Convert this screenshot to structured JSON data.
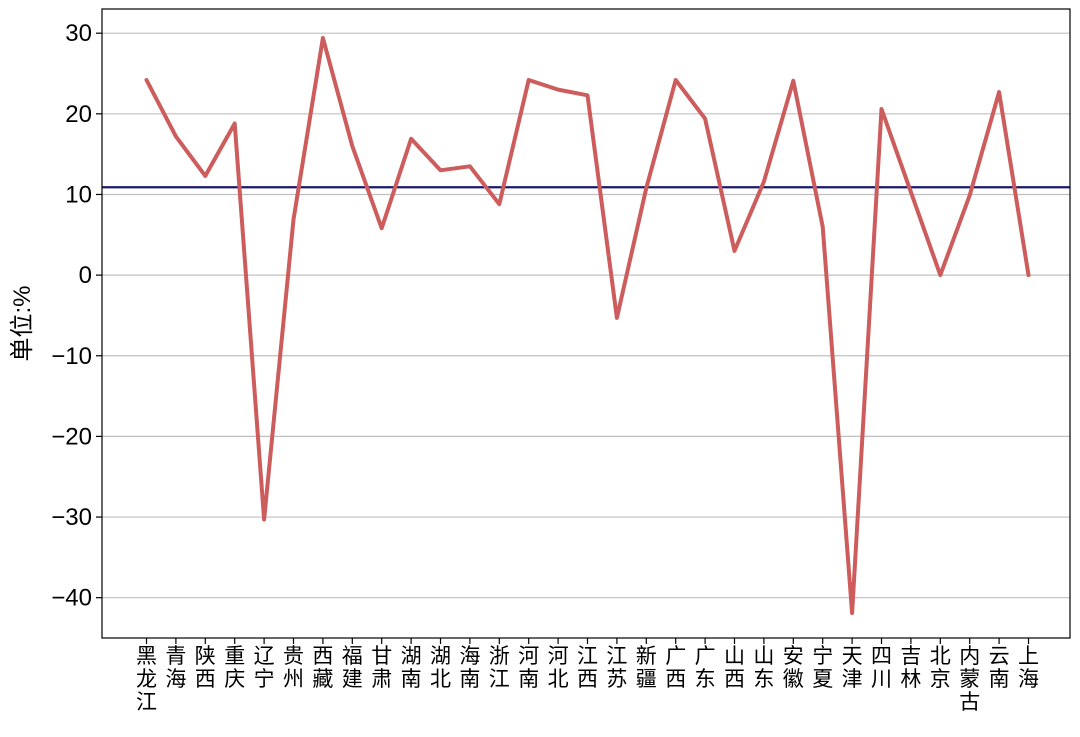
{
  "chart_data": {
    "type": "line",
    "ylabel": "单位:%",
    "ylim": [
      -45,
      33
    ],
    "yticks": [
      30,
      20,
      10,
      0,
      -10,
      -20,
      -30,
      -40
    ],
    "ytick_labels": [
      "30",
      "20",
      "10",
      "0",
      "−10",
      "−20",
      "−30",
      "−40"
    ],
    "grid": "y",
    "categories": [
      "黑龙江",
      "青海",
      "陕西",
      "重庆",
      "辽宁",
      "贵州",
      "西藏",
      "福建",
      "甘肃",
      "湖南",
      "湖北",
      "海南",
      "浙江",
      "河南",
      "河北",
      "江西",
      "江苏",
      "新疆",
      "广西",
      "广东",
      "山西",
      "山东",
      "安徽",
      "宁夏",
      "天津",
      "四川",
      "吉林",
      "北京",
      "内蒙古",
      "云南",
      "上海"
    ],
    "series": [
      {
        "color": "#cd5c5c",
        "values": [
          24.2,
          17.2,
          12.3,
          18.8,
          -30.3,
          6.9,
          29.4,
          16.0,
          5.8,
          16.9,
          13.0,
          13.5,
          8.8,
          24.2,
          23.0,
          22.3,
          -5.3,
          10.8,
          24.2,
          19.4,
          3.0,
          11.6,
          24.1,
          6.0,
          -41.9,
          20.6,
          10.3,
          0.0,
          9.9,
          22.7,
          0.0
        ]
      }
    ],
    "reference_line": {
      "value": 10.9,
      "color": "#191970"
    },
    "colors": {
      "grid": "#c0c0c0",
      "axis": "#000000"
    }
  }
}
